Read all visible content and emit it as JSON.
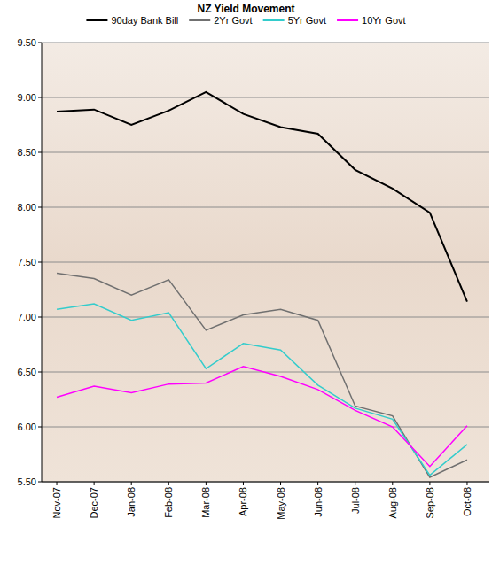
{
  "chart_data": {
    "type": "line",
    "title": "NZ Yield Movement",
    "categories": [
      "Nov-07",
      "Dec-07",
      "Jan-08",
      "Feb-08",
      "Mar-08",
      "Apr-08",
      "May-08",
      "Jun-08",
      "Jul-08",
      "Aug-08",
      "Sep-08",
      "Oct-08"
    ],
    "series": [
      {
        "name": "90day Bank Bill",
        "color": "#000000",
        "values": [
          8.87,
          8.89,
          8.75,
          8.88,
          9.05,
          8.85,
          8.73,
          8.67,
          8.34,
          8.17,
          7.95,
          7.14
        ]
      },
      {
        "name": "2Yr Govt",
        "color": "#707070",
        "values": [
          7.4,
          7.35,
          7.2,
          7.34,
          6.88,
          7.02,
          7.07,
          6.97,
          6.19,
          6.1,
          5.54,
          5.7
        ]
      },
      {
        "name": "5Yr Govt",
        "color": "#33cccc",
        "values": [
          7.07,
          7.12,
          6.97,
          7.04,
          6.53,
          6.76,
          6.7,
          6.38,
          6.17,
          6.07,
          5.56,
          5.84
        ]
      },
      {
        "name": "10Yr Govt",
        "color": "#ff00ff",
        "values": [
          6.27,
          6.37,
          6.31,
          6.39,
          6.4,
          6.55,
          6.46,
          6.34,
          6.15,
          6.0,
          5.64,
          6.01
        ]
      }
    ],
    "ylim": [
      5.5,
      9.5
    ],
    "yticks": [
      {
        "value": 5.5,
        "label": "5.50"
      },
      {
        "value": 6,
        "label": "6.00"
      },
      {
        "value": 6.5,
        "label": "6.50"
      },
      {
        "value": 7,
        "label": "7.00"
      },
      {
        "value": 7.5,
        "label": "7.50"
      },
      {
        "value": 8,
        "label": "8.00"
      },
      {
        "value": 8.5,
        "label": "8.50"
      },
      {
        "value": 9,
        "label": "9.00"
      },
      {
        "value": 9.5,
        "label": "9.50"
      }
    ],
    "grid": true,
    "legend": "top"
  }
}
